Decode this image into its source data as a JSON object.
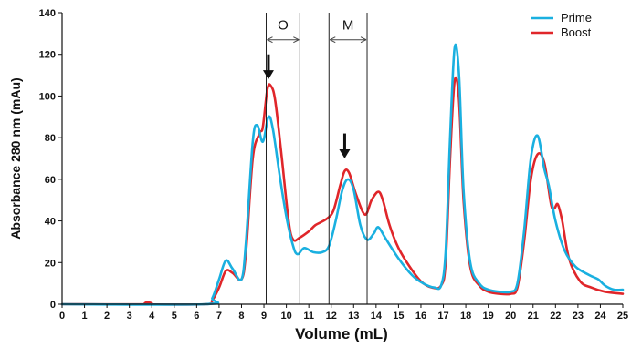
{
  "chart_data": {
    "type": "line",
    "title": "",
    "xlabel": "Volume (mL)",
    "ylabel": "Absorbance 280 nm (mAu)",
    "xlim": [
      0,
      25
    ],
    "ylim": [
      0,
      140
    ],
    "x_ticks": [
      "0",
      "1",
      "2",
      "3",
      "4",
      "5",
      "6",
      "7",
      "8",
      "9",
      "10",
      "11",
      "12",
      "13",
      "14",
      "15",
      "16",
      "17",
      "18",
      "19",
      "20",
      "21",
      "22",
      "23",
      "24",
      "25"
    ],
    "y_ticks": [
      "0",
      "20",
      "40",
      "60",
      "80",
      "100",
      "120",
      "140"
    ],
    "grid": false,
    "legend_position": "top-right",
    "series": [
      {
        "name": "Prime",
        "color": "#1ab0e0",
        "points": [
          [
            0,
            0
          ],
          [
            6.4,
            0
          ],
          [
            6.7,
            3
          ],
          [
            7,
            12
          ],
          [
            7.3,
            21
          ],
          [
            7.6,
            17
          ],
          [
            8,
            12
          ],
          [
            8.2,
            30
          ],
          [
            8.5,
            78
          ],
          [
            8.7,
            86
          ],
          [
            8.95,
            78
          ],
          [
            9.2,
            90
          ],
          [
            9.4,
            84
          ],
          [
            9.7,
            62
          ],
          [
            10,
            42
          ],
          [
            10.3,
            28
          ],
          [
            10.5,
            24
          ],
          [
            10.8,
            27
          ],
          [
            11.2,
            25
          ],
          [
            11.6,
            25
          ],
          [
            11.9,
            28
          ],
          [
            12.2,
            40
          ],
          [
            12.5,
            55
          ],
          [
            12.75,
            60
          ],
          [
            13,
            55
          ],
          [
            13.3,
            38
          ],
          [
            13.6,
            31
          ],
          [
            13.9,
            34
          ],
          [
            14.1,
            37
          ],
          [
            14.4,
            32
          ],
          [
            15,
            22
          ],
          [
            15.6,
            14
          ],
          [
            16.1,
            10
          ],
          [
            16.6,
            8
          ],
          [
            16.9,
            9
          ],
          [
            17.1,
            25
          ],
          [
            17.3,
            80
          ],
          [
            17.5,
            123
          ],
          [
            17.7,
            110
          ],
          [
            17.9,
            55
          ],
          [
            18.2,
            20
          ],
          [
            18.6,
            10
          ],
          [
            19,
            7
          ],
          [
            19.5,
            6
          ],
          [
            20,
            6
          ],
          [
            20.3,
            10
          ],
          [
            20.6,
            35
          ],
          [
            20.9,
            70
          ],
          [
            21.2,
            81
          ],
          [
            21.5,
            65
          ],
          [
            21.7,
            57
          ],
          [
            22,
            40
          ],
          [
            22.4,
            26
          ],
          [
            22.9,
            18
          ],
          [
            23.5,
            14
          ],
          [
            23.9,
            12
          ],
          [
            24.2,
            9
          ],
          [
            24.6,
            7
          ],
          [
            25,
            7
          ]
        ]
      },
      {
        "name": "Boost",
        "color": "#e0262a",
        "points": [
          [
            0,
            0
          ],
          [
            3.7,
            0
          ],
          [
            3.8,
            1
          ],
          [
            3.9,
            0
          ],
          [
            6.4,
            0
          ],
          [
            6.7,
            2
          ],
          [
            7,
            8
          ],
          [
            7.3,
            16
          ],
          [
            7.6,
            15
          ],
          [
            8,
            12
          ],
          [
            8.2,
            25
          ],
          [
            8.5,
            70
          ],
          [
            8.8,
            82
          ],
          [
            8.95,
            85
          ],
          [
            9.15,
            103
          ],
          [
            9.3,
            105
          ],
          [
            9.5,
            98
          ],
          [
            9.8,
            70
          ],
          [
            10.1,
            40
          ],
          [
            10.3,
            31
          ],
          [
            10.6,
            32
          ],
          [
            11,
            35
          ],
          [
            11.3,
            38
          ],
          [
            11.8,
            41
          ],
          [
            12.1,
            45
          ],
          [
            12.4,
            57
          ],
          [
            12.6,
            64
          ],
          [
            12.8,
            63
          ],
          [
            13.1,
            53
          ],
          [
            13.5,
            43
          ],
          [
            13.8,
            50
          ],
          [
            14.1,
            54
          ],
          [
            14.3,
            50
          ],
          [
            14.6,
            38
          ],
          [
            15,
            27
          ],
          [
            15.5,
            18
          ],
          [
            16,
            11
          ],
          [
            16.5,
            8
          ],
          [
            16.9,
            9
          ],
          [
            17.1,
            20
          ],
          [
            17.3,
            70
          ],
          [
            17.5,
            107
          ],
          [
            17.7,
            98
          ],
          [
            17.9,
            50
          ],
          [
            18.2,
            18
          ],
          [
            18.6,
            9
          ],
          [
            19,
            6
          ],
          [
            19.5,
            5
          ],
          [
            20,
            5
          ],
          [
            20.3,
            8
          ],
          [
            20.6,
            30
          ],
          [
            20.9,
            60
          ],
          [
            21.2,
            72
          ],
          [
            21.5,
            68
          ],
          [
            21.8,
            48
          ],
          [
            21.95,
            46
          ],
          [
            22.1,
            48
          ],
          [
            22.3,
            40
          ],
          [
            22.6,
            22
          ],
          [
            23.1,
            11
          ],
          [
            23.6,
            8
          ],
          [
            24.2,
            6
          ],
          [
            25,
            5
          ]
        ]
      }
    ],
    "vertical_lines": [
      9.1,
      10.6,
      11.9,
      13.6
    ],
    "regions": [
      {
        "label": "O",
        "start": 9.1,
        "end": 10.6
      },
      {
        "label": "M",
        "start": 11.9,
        "end": 13.6
      }
    ],
    "arrows": [
      {
        "x": 9.2,
        "y_top": 120,
        "y_bottom": 108
      },
      {
        "x": 12.6,
        "y_top": 82,
        "y_bottom": 70
      }
    ]
  }
}
